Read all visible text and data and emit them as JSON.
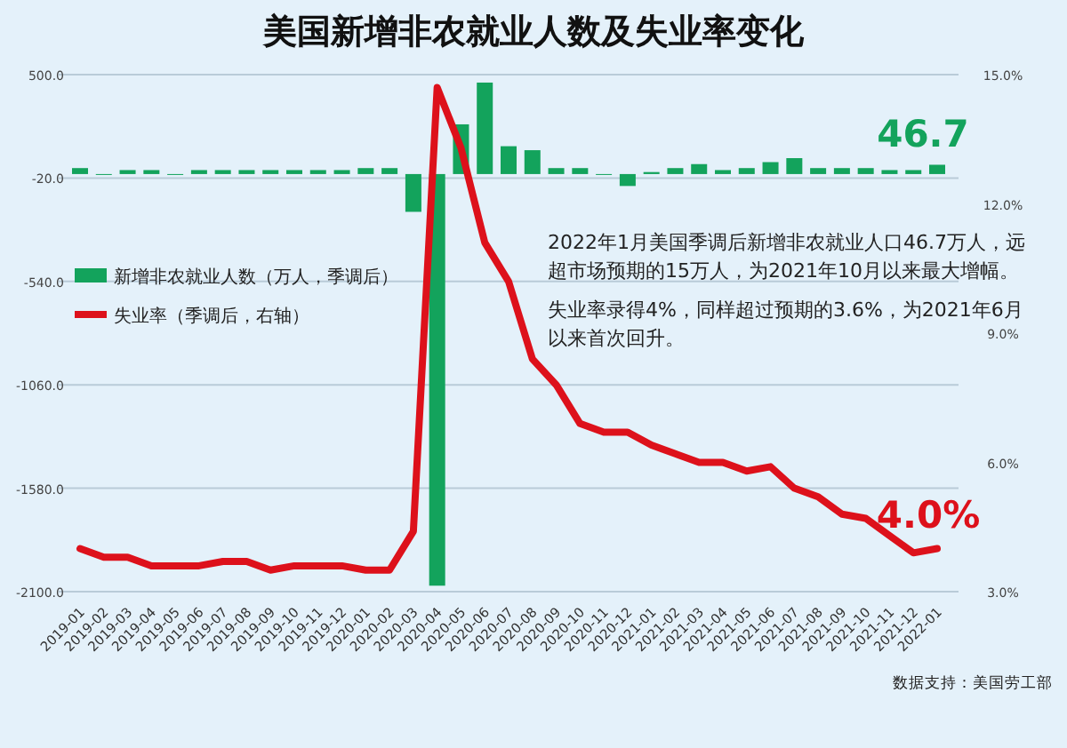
{
  "chart_data": {
    "type": "bar",
    "title": "美国新增非农就业人数及失业率变化",
    "categories": [
      "2019-01",
      "2019-02",
      "2019-03",
      "2019-04",
      "2019-05",
      "2019-06",
      "2019-07",
      "2019-08",
      "2019-09",
      "2019-10",
      "2019-11",
      "2019-12",
      "2020-01",
      "2020-02",
      "2020-03",
      "2020-04",
      "2020-05",
      "2020-06",
      "2020-07",
      "2020-08",
      "2020-09",
      "2020-10",
      "2020-11",
      "2020-12",
      "2021-01",
      "2021-02",
      "2021-03",
      "2021-04",
      "2021-05",
      "2021-06",
      "2021-07",
      "2021-08",
      "2021-09",
      "2021-10",
      "2021-11",
      "2021-12",
      "2022-01"
    ],
    "series": [
      {
        "name": "新增非农就业人数（万人，季调后）",
        "color": "#13a35c",
        "values": [
          30,
          0,
          20,
          20,
          0,
          20,
          20,
          20,
          20,
          20,
          20,
          20,
          30,
          30,
          -190,
          -2070,
          250,
          460,
          140,
          120,
          30,
          30,
          0,
          -60,
          10,
          30,
          50,
          20,
          30,
          60,
          80,
          30,
          30,
          30,
          20,
          20,
          46.7
        ],
        "value_labels": [
          null,
          null,
          null,
          null,
          null,
          null,
          null,
          null,
          null,
          null,
          null,
          null,
          null,
          null,
          null,
          null,
          null,
          null,
          null,
          null,
          null,
          null,
          null,
          null,
          null,
          null,
          null,
          null,
          null,
          null,
          null,
          null,
          null,
          null,
          null,
          null,
          "46.7"
        ]
      },
      {
        "name": "失业率（季调后，右轴）",
        "type": "line",
        "axis": "y2",
        "color": "#dd111b",
        "values": [
          4.0,
          3.8,
          3.8,
          3.6,
          3.6,
          3.6,
          3.7,
          3.7,
          3.5,
          3.6,
          3.6,
          3.6,
          3.5,
          3.5,
          4.4,
          14.7,
          13.3,
          11.1,
          10.2,
          8.4,
          7.8,
          6.9,
          6.7,
          6.7,
          6.4,
          6.2,
          6.0,
          6.0,
          5.8,
          5.9,
          5.4,
          5.2,
          4.8,
          4.7,
          4.3,
          3.9,
          4.0
        ],
        "value_labels": [
          null,
          null,
          null,
          null,
          null,
          null,
          null,
          null,
          null,
          null,
          null,
          null,
          null,
          null,
          null,
          null,
          null,
          null,
          null,
          null,
          null,
          null,
          null,
          null,
          null,
          null,
          null,
          null,
          null,
          null,
          null,
          null,
          null,
          null,
          null,
          null,
          "4.0%"
        ]
      }
    ],
    "ylim": [
      -2100,
      500
    ],
    "yticks": [
      {
        "value": 500,
        "label": "500.0"
      },
      {
        "value": -20,
        "label": "-20.0"
      },
      {
        "value": -540,
        "label": "-540.0"
      },
      {
        "value": -1060,
        "label": "-1060.0"
      },
      {
        "value": -1580,
        "label": "-1580.0"
      },
      {
        "value": -2100,
        "label": "-2100.0"
      }
    ],
    "y2lim": [
      3,
      15
    ],
    "y2ticks": [
      {
        "value": 3,
        "label": "3.0%"
      },
      {
        "value": 6,
        "label": "6.0%"
      },
      {
        "value": 9,
        "label": "9.0%"
      },
      {
        "value": 12,
        "label": "12.0%"
      },
      {
        "value": 15,
        "label": "15.0%"
      }
    ],
    "grid": "y",
    "legend": "left",
    "annotations": [
      "2022年1月美国季调后新增非农就业人口46.7万人，远超市场预期的15万人，为2021年10月以来最大增幅。",
      "失业率录得4%，同样超过预期的3.6%，为2021年6月以来首次回升。",
      "数据支持：美国劳工部"
    ]
  }
}
